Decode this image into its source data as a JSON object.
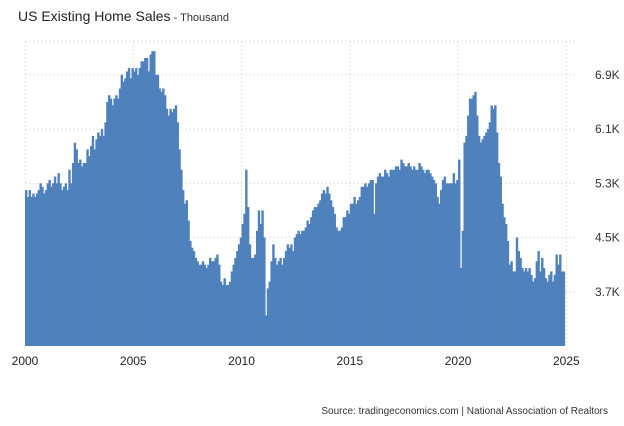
{
  "chart": {
    "title": "US Existing Home Sales",
    "separator": " - ",
    "subtitle": "Thousand",
    "source": "Source: tradingeconomics.com | National Association of Realtors",
    "bar_color": "#4f81bd",
    "grid_color": "#e3e3e3"
  },
  "chart_data": {
    "type": "bar",
    "title": "US Existing Home Sales",
    "subtitle": "Thousand",
    "x_tick_labels": [
      "2000",
      "2005",
      "2010",
      "2015",
      "2020",
      "2025"
    ],
    "y_tick_labels": [
      "3.7K",
      "4.5K",
      "5.3K",
      "6.1K",
      "6.9K"
    ],
    "y_ticks": [
      3.7,
      4.5,
      5.3,
      6.1,
      6.9
    ],
    "xlim": [
      2000.0,
      2025.4
    ],
    "ylim": [
      2.9,
      7.4
    ],
    "y_unit": "millions",
    "grid": true,
    "legend": "none",
    "series": [
      {
        "x_start": 2000.0,
        "x_step": 0.08333,
        "values": [
          5.2,
          5.1,
          5.2,
          5.1,
          5.15,
          5.1,
          5.15,
          5.2,
          5.3,
          5.25,
          5.15,
          5.2,
          5.3,
          5.35,
          5.25,
          5.3,
          5.4,
          5.3,
          5.45,
          5.3,
          5.2,
          5.25,
          5.3,
          5.2,
          5.5,
          5.3,
          5.6,
          5.9,
          5.8,
          5.6,
          5.65,
          5.55,
          5.6,
          5.6,
          5.8,
          5.7,
          5.85,
          6.0,
          5.8,
          5.95,
          6.05,
          6.0,
          6.1,
          6.0,
          6.2,
          6.5,
          6.6,
          6.55,
          6.45,
          6.55,
          6.6,
          6.55,
          6.7,
          6.9,
          6.8,
          6.85,
          6.95,
          7.0,
          6.85,
          7.0,
          6.95,
          7.0,
          6.9,
          7.0,
          7.1,
          7.1,
          7.15,
          7.15,
          6.95,
          7.2,
          7.25,
          7.25,
          6.9,
          6.9,
          6.7,
          6.65,
          6.7,
          6.6,
          6.4,
          6.3,
          6.4,
          6.35,
          6.4,
          6.45,
          6.2,
          5.8,
          5.5,
          5.2,
          5.0,
          5.05,
          4.75,
          4.45,
          4.35,
          4.3,
          4.2,
          4.15,
          4.1,
          4.1,
          4.15,
          4.1,
          4.05,
          4.1,
          4.2,
          4.15,
          4.15,
          4.2,
          4.25,
          4.1,
          3.85,
          3.8,
          3.9,
          3.8,
          3.8,
          3.85,
          4.0,
          4.1,
          4.2,
          4.3,
          4.4,
          4.5,
          4.7,
          4.85,
          5.5,
          4.95,
          4.4,
          4.2,
          4.2,
          4.25,
          4.6,
          4.9,
          4.7,
          4.9,
          4.5,
          3.35,
          3.75,
          3.85,
          4.15,
          4.4,
          4.2,
          4.1,
          4.15,
          4.2,
          4.1,
          4.2,
          4.3,
          4.4,
          4.35,
          4.4,
          4.3,
          4.5,
          4.55,
          4.6,
          4.55,
          4.6,
          4.6,
          4.65,
          4.75,
          4.7,
          4.8,
          4.9,
          4.95,
          4.95,
          5.0,
          5.05,
          5.15,
          5.2,
          5.15,
          5.25,
          5.15,
          5.05,
          4.95,
          4.85,
          4.65,
          4.6,
          4.6,
          4.65,
          4.8,
          4.8,
          4.9,
          4.85,
          5.0,
          5.0,
          5.1,
          5.0,
          5.05,
          5.1,
          5.25,
          5.25,
          5.3,
          5.25,
          5.3,
          5.35,
          5.35,
          4.85,
          5.3,
          5.4,
          5.45,
          5.4,
          5.4,
          5.5,
          5.45,
          5.4,
          5.5,
          5.5,
          5.5,
          5.55,
          5.55,
          5.5,
          5.65,
          5.6,
          5.55,
          5.55,
          5.6,
          5.55,
          5.5,
          5.55,
          5.5,
          5.5,
          5.6,
          5.55,
          5.5,
          5.45,
          5.5,
          5.5,
          5.45,
          5.4,
          5.35,
          5.3,
          5.1,
          5.0,
          5.2,
          5.35,
          5.4,
          5.3,
          5.3,
          5.3,
          5.3,
          5.45,
          5.3,
          5.35,
          5.65,
          4.05,
          4.6,
          5.9,
          6.0,
          6.3,
          6.55,
          6.55,
          6.6,
          6.65,
          6.3,
          6.0,
          5.9,
          5.95,
          6.0,
          6.05,
          6.1,
          6.2,
          6.45,
          6.4,
          6.45,
          6.05,
          5.6,
          5.4,
          5.0,
          4.8,
          4.7,
          4.45,
          4.1,
          4.15,
          4.0,
          4.0,
          4.5,
          4.3,
          4.2,
          4.05,
          4.0,
          4.05,
          4.0,
          4.05,
          3.95,
          3.85,
          3.9,
          4.15,
          4.3,
          4.0,
          4.2,
          4.05,
          3.9,
          3.85,
          3.95,
          4.0,
          3.85,
          3.95,
          4.25,
          4.1,
          4.25,
          4.0,
          4.0
        ]
      }
    ]
  }
}
